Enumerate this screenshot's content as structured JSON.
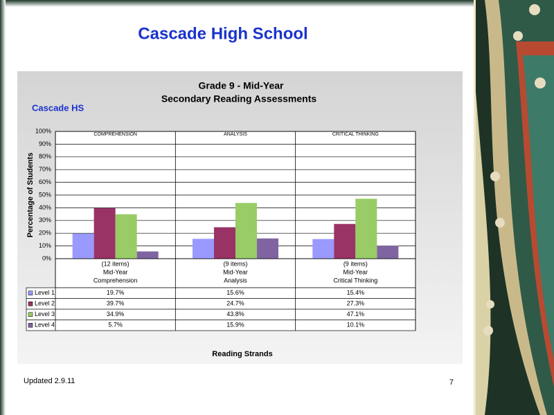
{
  "slide": {
    "title": "Cascade High School",
    "footer": "Updated 2.9.11",
    "page_number": "7"
  },
  "chart_data": {
    "type": "bar",
    "title": "Grade 9 - Mid-Year",
    "subtitle": "Secondary Reading Assessments",
    "annotation": "Cascade HS",
    "y_label": "Percentage of Students",
    "x_label": "Reading Strands",
    "strand_headers": [
      "COMPREHENSION",
      "ANALYSIS",
      "CRITICAL THINKING"
    ],
    "categories": [
      [
        "(12 items)",
        "Mid-Year",
        "Comprehension"
      ],
      [
        "(9 items)",
        "Mid-Year",
        "Analysis"
      ],
      [
        "(9 items)",
        "Mid-Year",
        "Critical Thinking"
      ]
    ],
    "series": [
      {
        "name": "Level 1",
        "color": "#9999ff",
        "values": [
          19.7,
          15.6,
          15.4
        ],
        "value_labels": [
          "19.7%",
          "15.6%",
          "15.4%"
        ]
      },
      {
        "name": "Level 2",
        "color": "#993366",
        "values": [
          39.7,
          24.7,
          27.3
        ],
        "value_labels": [
          "39.7%",
          "24.7%",
          "27.3%"
        ]
      },
      {
        "name": "Level 3",
        "color": "#99cc66",
        "values": [
          34.9,
          43.8,
          47.1
        ],
        "value_labels": [
          "34.9%",
          "43.8%",
          "47.1%"
        ]
      },
      {
        "name": "Level 4",
        "color": "#8064a2",
        "values": [
          5.7,
          15.9,
          10.1
        ],
        "value_labels": [
          "5.7%",
          "15.9%",
          "10.1%"
        ]
      }
    ],
    "ylim": [
      0,
      100
    ],
    "yticks": [
      {
        "value": 0,
        "label": "0%"
      },
      {
        "value": 10,
        "label": "10%"
      },
      {
        "value": 20,
        "label": "20%"
      },
      {
        "value": 30,
        "label": "30%"
      },
      {
        "value": 40,
        "label": "40%"
      },
      {
        "value": 50,
        "label": "50%"
      },
      {
        "value": 60,
        "label": "60%"
      },
      {
        "value": 70,
        "label": "70%"
      },
      {
        "value": 80,
        "label": "80%"
      },
      {
        "value": 90,
        "label": "90%"
      },
      {
        "value": 100,
        "label": "100%"
      }
    ],
    "grid": true
  }
}
